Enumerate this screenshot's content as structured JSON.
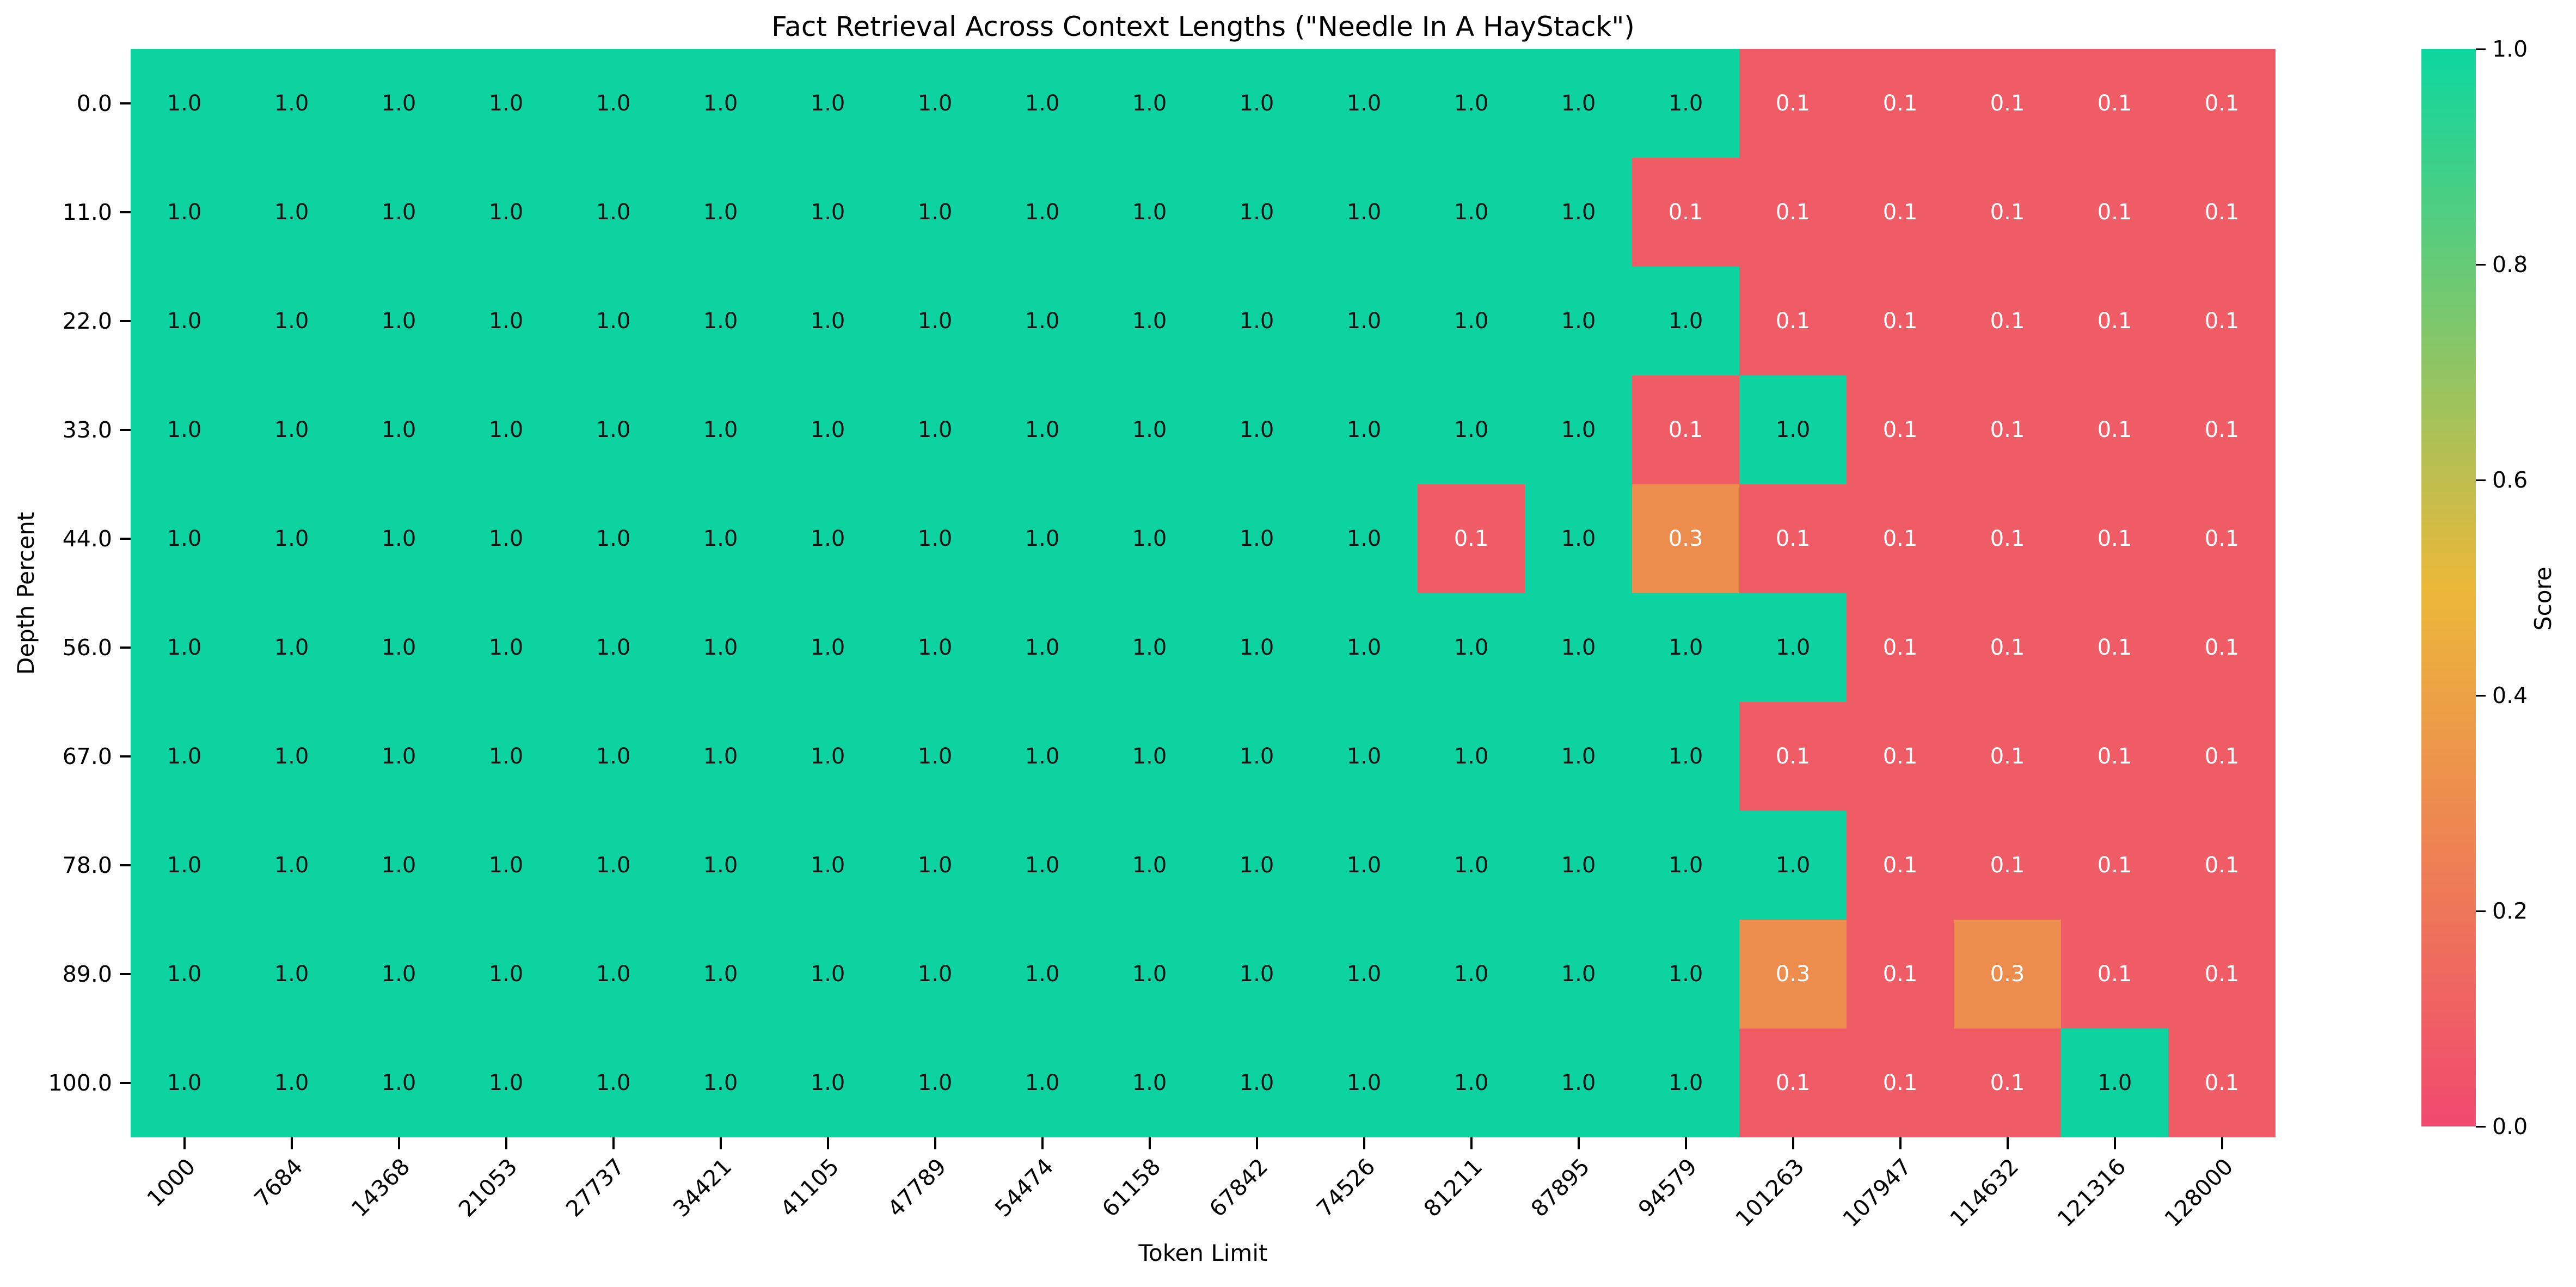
{
  "chart_data": {
    "type": "heatmap",
    "title": "Fact Retrieval Across Context Lengths (\"Needle In A HayStack\")",
    "xlabel": "Token Limit",
    "ylabel": "Depth Percent",
    "x_categories": [
      "1000",
      "7684",
      "14368",
      "21053",
      "27737",
      "34421",
      "41105",
      "47789",
      "54474",
      "61158",
      "67842",
      "74526",
      "81211",
      "87895",
      "94579",
      "101263",
      "107947",
      "114632",
      "121316",
      "128000"
    ],
    "y_categories": [
      "0.0",
      "11.0",
      "22.0",
      "33.0",
      "44.0",
      "56.0",
      "67.0",
      "78.0",
      "89.0",
      "100.0"
    ],
    "matrix": [
      [
        1.0,
        1.0,
        1.0,
        1.0,
        1.0,
        1.0,
        1.0,
        1.0,
        1.0,
        1.0,
        1.0,
        1.0,
        1.0,
        1.0,
        1.0,
        0.1,
        0.1,
        0.1,
        0.1,
        0.1
      ],
      [
        1.0,
        1.0,
        1.0,
        1.0,
        1.0,
        1.0,
        1.0,
        1.0,
        1.0,
        1.0,
        1.0,
        1.0,
        1.0,
        1.0,
        0.1,
        0.1,
        0.1,
        0.1,
        0.1,
        0.1
      ],
      [
        1.0,
        1.0,
        1.0,
        1.0,
        1.0,
        1.0,
        1.0,
        1.0,
        1.0,
        1.0,
        1.0,
        1.0,
        1.0,
        1.0,
        1.0,
        0.1,
        0.1,
        0.1,
        0.1,
        0.1
      ],
      [
        1.0,
        1.0,
        1.0,
        1.0,
        1.0,
        1.0,
        1.0,
        1.0,
        1.0,
        1.0,
        1.0,
        1.0,
        1.0,
        1.0,
        0.1,
        1.0,
        0.1,
        0.1,
        0.1,
        0.1
      ],
      [
        1.0,
        1.0,
        1.0,
        1.0,
        1.0,
        1.0,
        1.0,
        1.0,
        1.0,
        1.0,
        1.0,
        1.0,
        0.1,
        1.0,
        0.3,
        0.1,
        0.1,
        0.1,
        0.1,
        0.1
      ],
      [
        1.0,
        1.0,
        1.0,
        1.0,
        1.0,
        1.0,
        1.0,
        1.0,
        1.0,
        1.0,
        1.0,
        1.0,
        1.0,
        1.0,
        1.0,
        1.0,
        0.1,
        0.1,
        0.1,
        0.1
      ],
      [
        1.0,
        1.0,
        1.0,
        1.0,
        1.0,
        1.0,
        1.0,
        1.0,
        1.0,
        1.0,
        1.0,
        1.0,
        1.0,
        1.0,
        1.0,
        0.1,
        0.1,
        0.1,
        0.1,
        0.1
      ],
      [
        1.0,
        1.0,
        1.0,
        1.0,
        1.0,
        1.0,
        1.0,
        1.0,
        1.0,
        1.0,
        1.0,
        1.0,
        1.0,
        1.0,
        1.0,
        1.0,
        0.1,
        0.1,
        0.1,
        0.1
      ],
      [
        1.0,
        1.0,
        1.0,
        1.0,
        1.0,
        1.0,
        1.0,
        1.0,
        1.0,
        1.0,
        1.0,
        1.0,
        1.0,
        1.0,
        1.0,
        0.3,
        0.1,
        0.3,
        0.1,
        0.1
      ],
      [
        1.0,
        1.0,
        1.0,
        1.0,
        1.0,
        1.0,
        1.0,
        1.0,
        1.0,
        1.0,
        1.0,
        1.0,
        1.0,
        1.0,
        1.0,
        0.1,
        0.1,
        0.1,
        1.0,
        0.1
      ]
    ],
    "value_colors": {
      "1.0": "#0DD3A0",
      "0.3": "#EC8D4D",
      "0.1": "#F05C66"
    },
    "value_text_colors": {
      "1.0": "#151515",
      "0.3": "#FFFFFF",
      "0.1": "#FFFFFF"
    },
    "colorbar": {
      "label": "Score",
      "tick_labels": [
        "1.0",
        "0.8",
        "0.6",
        "0.4",
        "0.2",
        "0.0"
      ],
      "tick_values": [
        1.0,
        0.8,
        0.6,
        0.4,
        0.2,
        0.0
      ],
      "gradient_stops": {
        "0.0": "#F0496E",
        "0.5": "#EBB839",
        "1.0": "#0CD79F"
      }
    },
    "axis_ranges": {
      "x_count": 20,
      "y_count": 10,
      "score_min": 0.0,
      "score_max": 1.0
    },
    "grid": "off",
    "legend_position": "right-colorbar",
    "background": "#FFFFFF"
  }
}
